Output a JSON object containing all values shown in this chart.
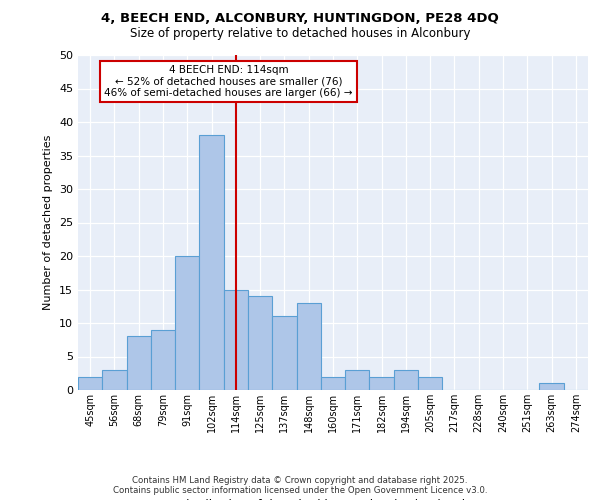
{
  "title_line1": "4, BEECH END, ALCONBURY, HUNTINGDON, PE28 4DQ",
  "title_line2": "Size of property relative to detached houses in Alconbury",
  "xlabel": "Distribution of detached houses by size in Alconbury",
  "ylabel": "Number of detached properties",
  "footer_line1": "Contains HM Land Registry data © Crown copyright and database right 2025.",
  "footer_line2": "Contains public sector information licensed under the Open Government Licence v3.0.",
  "bin_labels": [
    "45sqm",
    "56sqm",
    "68sqm",
    "79sqm",
    "91sqm",
    "102sqm",
    "114sqm",
    "125sqm",
    "137sqm",
    "148sqm",
    "160sqm",
    "171sqm",
    "182sqm",
    "194sqm",
    "205sqm",
    "217sqm",
    "228sqm",
    "240sqm",
    "251sqm",
    "263sqm",
    "274sqm"
  ],
  "bar_values": [
    2,
    3,
    8,
    9,
    20,
    38,
    15,
    14,
    11,
    13,
    2,
    3,
    2,
    3,
    2,
    0,
    0,
    0,
    0,
    1,
    0
  ],
  "bar_color": "#aec6e8",
  "bar_edge_color": "#5a9fd4",
  "background_color": "#e8eef8",
  "grid_color": "#ffffff",
  "annotation_text": "4 BEECH END: 114sqm\n← 52% of detached houses are smaller (76)\n46% of semi-detached houses are larger (66) →",
  "annotation_box_color": "#ffffff",
  "annotation_box_edge_color": "#cc0000",
  "vline_index": 6,
  "vline_color": "#cc0000",
  "ylim": [
    0,
    50
  ],
  "yticks": [
    0,
    5,
    10,
    15,
    20,
    25,
    30,
    35,
    40,
    45,
    50
  ]
}
